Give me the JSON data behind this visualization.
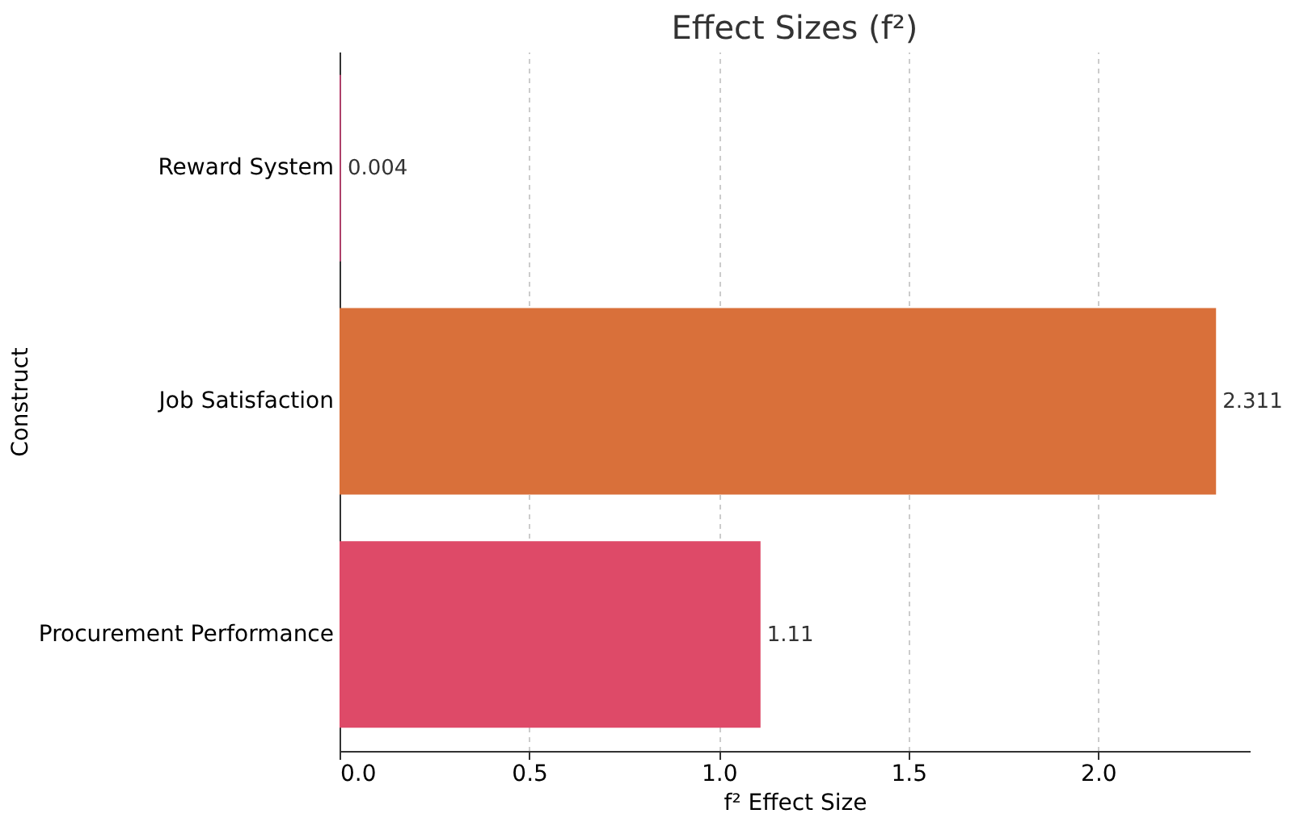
{
  "chart_data": {
    "type": "bar",
    "orientation": "horizontal",
    "title": "Effect Sizes (f²)",
    "xlabel": "f² Effect Size",
    "ylabel": "Construct",
    "categories": [
      "Reward System",
      "Job Satisfaction",
      "Procurement Performance"
    ],
    "values": [
      0.004,
      2.311,
      1.11
    ],
    "colors": [
      "#b8426e",
      "#d9703a",
      "#de4a68"
    ],
    "xlim": [
      0,
      2.4
    ],
    "xticks": [
      {
        "value": 0,
        "label": "0.0"
      },
      0.5,
      {
        "value": 1,
        "label": "1.0"
      },
      1.5,
      {
        "value": 2,
        "label": "2.0"
      }
    ],
    "grid": "x",
    "data_labels": true
  }
}
